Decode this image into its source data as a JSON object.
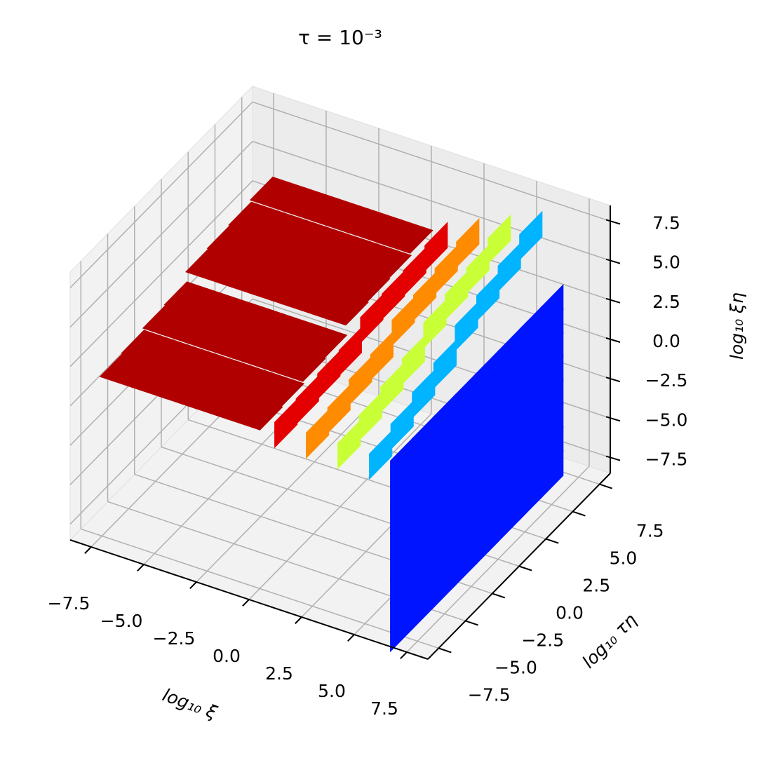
{
  "chart_data": {
    "type": "scatter3d",
    "title": "τ = 10⁻³",
    "x_label": "log₁₀ ξ",
    "y_label": "log₁₀ τη",
    "z_label": "log₁₀ ξη",
    "xlim": [
      -8.5,
      8.5
    ],
    "ylim": [
      -8.5,
      8.5
    ],
    "zlim": [
      -8.5,
      8.5
    ],
    "xticks": [
      {
        "value": -7.5,
        "label": "−7.5"
      },
      {
        "value": -5,
        "label": "−5.0"
      },
      {
        "value": -2.5,
        "label": "−2.5"
      },
      {
        "value": 0,
        "label": "0.0"
      },
      2.5,
      {
        "value": 5,
        "label": "5.0"
      },
      7.5
    ],
    "yticks": [
      {
        "value": -7.5,
        "label": "−7.5"
      },
      {
        "value": -5,
        "label": "−5.0"
      },
      {
        "value": -2.5,
        "label": "−2.5"
      },
      {
        "value": 0,
        "label": "0.0"
      },
      2.5,
      {
        "value": 5,
        "label": "5.0"
      },
      7.5
    ],
    "zticks": [
      {
        "value": -7.5,
        "label": "−7.5"
      },
      {
        "value": -5,
        "label": "−5.0"
      },
      {
        "value": -2.5,
        "label": "−2.5"
      },
      {
        "value": 0,
        "label": "0.0"
      },
      2.5,
      {
        "value": 5,
        "label": "5.0"
      },
      7.5
    ],
    "grid": true,
    "series": [
      {
        "color": "#b00000",
        "x": [
          -6,
          -6,
          -6,
          -6,
          -6,
          -6,
          -6,
          -6,
          -4.5,
          -4.5,
          -4.5,
          -4.5,
          -4.5,
          -4.5,
          -4.5,
          -4.5,
          -3,
          -3,
          -3,
          -3,
          -3,
          -3,
          -3,
          -3,
          -1.5,
          -1.5,
          -1.5,
          -1.5,
          -1.5,
          -1.5,
          -1.5,
          -1.5,
          0,
          0,
          0,
          0,
          0,
          0,
          0,
          0
        ],
        "y": [
          -8,
          -6,
          -4,
          -2,
          0,
          2,
          4,
          6,
          -8,
          -6,
          -4,
          -2,
          0,
          2,
          4,
          6,
          -8,
          -6,
          -4,
          -2,
          0,
          2,
          4,
          6,
          -8,
          -6,
          -4,
          -2,
          0,
          2,
          4,
          6,
          -8,
          -6,
          -4,
          -2,
          0,
          2,
          4,
          6
        ],
        "z": [
          3,
          3.1,
          3.3,
          3.4,
          4.1,
          4.2,
          4.3,
          4.5,
          3,
          3.1,
          3.3,
          3.4,
          4.1,
          4.2,
          4.3,
          4.5,
          3,
          3.1,
          3.3,
          3.4,
          4.1,
          4.2,
          4.3,
          4.5,
          3,
          3.1,
          3.3,
          3.4,
          4.1,
          4.2,
          4.3,
          4.5,
          3,
          3.1,
          3.3,
          3.4,
          4.1,
          4.2,
          4.3,
          4.5
        ]
      },
      {
        "color": "#e40000",
        "x": [
          1.5,
          1.5,
          1.5,
          1.5,
          1.5,
          1.5,
          1.5,
          1.5
        ],
        "y": [
          -8,
          -6,
          -4,
          -2,
          0,
          2,
          4,
          6
        ],
        "z": [
          3,
          3.1,
          3.3,
          3.4,
          4.1,
          4.2,
          4.3,
          4.5
        ]
      },
      {
        "color": "#ff8c00",
        "x": [
          3,
          3,
          3,
          3,
          3,
          3,
          3,
          3
        ],
        "y": [
          -8,
          -6,
          -4,
          -2,
          0,
          2,
          4,
          6
        ],
        "z": [
          3,
          3.2,
          3.6,
          3.8,
          4.6,
          4.8,
          5.1,
          5.4
        ]
      },
      {
        "color": "#c8ff36",
        "x": [
          4.5,
          4.5,
          4.5,
          4.5,
          4.5,
          4.5,
          4.5,
          4.5
        ],
        "y": [
          -8,
          -6,
          -4,
          -2,
          0,
          2,
          4,
          6
        ],
        "z": [
          3,
          3.4,
          3.8,
          4.2,
          5.1,
          5.5,
          5.8,
          6.3
        ]
      },
      {
        "color": "#00b4ff",
        "x": [
          6,
          6,
          6,
          6,
          6,
          6,
          6,
          6
        ],
        "y": [
          -8,
          -6,
          -4,
          -2,
          0,
          2,
          4,
          6
        ],
        "z": [
          3,
          3.5,
          4.1,
          4.6,
          5.6,
          6.1,
          6.6,
          7.2
        ]
      },
      {
        "color": "#0014ff",
        "x": [
          7,
          7,
          7,
          7,
          7,
          7,
          7,
          7,
          7,
          7,
          7,
          7,
          7,
          7,
          7,
          7,
          7,
          7,
          7,
          7,
          7,
          7,
          7,
          7,
          7,
          7,
          7,
          7,
          7,
          7,
          7,
          7,
          7,
          7,
          7,
          7,
          7,
          7,
          7,
          7,
          7,
          7,
          7,
          7,
          7,
          7,
          7,
          7,
          7,
          7,
          7,
          7,
          7,
          7,
          7,
          7,
          7,
          7,
          7,
          7,
          7,
          7,
          7,
          7
        ],
        "y": [
          -8,
          -8,
          -8,
          -8,
          -8,
          -8,
          -8,
          -8,
          -6,
          -6,
          -6,
          -6,
          -6,
          -6,
          -6,
          -6,
          -4,
          -4,
          -4,
          -4,
          -4,
          -4,
          -4,
          -4,
          -2,
          -2,
          -2,
          -2,
          -2,
          -2,
          -2,
          -2,
          0,
          0,
          0,
          0,
          0,
          0,
          0,
          0,
          2,
          2,
          2,
          2,
          2,
          2,
          2,
          2,
          4,
          4,
          4,
          4,
          4,
          4,
          4,
          4,
          6,
          6,
          6,
          6,
          6,
          6,
          6,
          6
        ],
        "z": [
          -7.5,
          -6,
          -4.5,
          -3,
          -1.5,
          0,
          1.5,
          3,
          -7.5,
          -6,
          -4.5,
          -3,
          -1.5,
          0,
          1.5,
          3,
          -7.5,
          -6,
          -4.5,
          -3,
          -1.5,
          0,
          1.5,
          3,
          -7.5,
          -6,
          -4.5,
          -3,
          -1.5,
          0,
          1.5,
          3,
          -7.5,
          -6,
          -4.5,
          -3,
          -1.5,
          0,
          1.5,
          3,
          -7.5,
          -6,
          -4.5,
          -3,
          -1.5,
          0,
          1.5,
          3,
          -7.5,
          -6,
          -4.5,
          -3,
          -1.5,
          0,
          1.5,
          3,
          -7.5,
          -6,
          -4.5,
          -3,
          -1.5,
          0,
          1.5,
          3
        ]
      }
    ]
  }
}
